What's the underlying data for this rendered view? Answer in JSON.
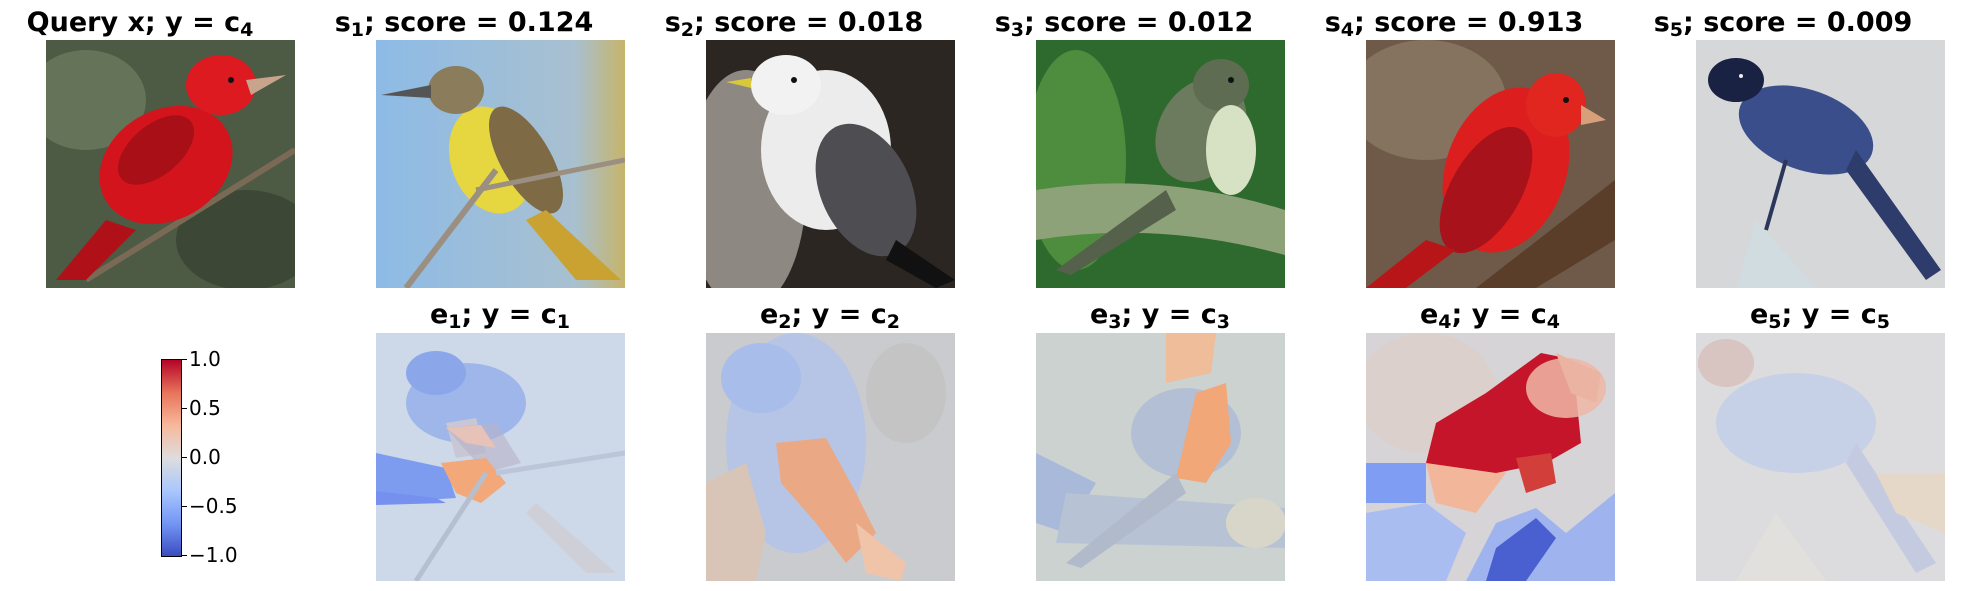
{
  "query": {
    "title_pre": "Query x; y = c",
    "title_sub": "4"
  },
  "similar": [
    {
      "sym": "s",
      "idx": "1",
      "score_text": "; score = 0.124"
    },
    {
      "sym": "s",
      "idx": "2",
      "score_text": "; score = 0.018"
    },
    {
      "sym": "s",
      "idx": "3",
      "score_text": "; score = 0.012"
    },
    {
      "sym": "s",
      "idx": "4",
      "score_text": "; score = 0.913"
    },
    {
      "sym": "s",
      "idx": "5",
      "score_text": "; score = 0.009"
    }
  ],
  "explanations": [
    {
      "sym": "e",
      "idx": "1",
      "mid": "; y = c",
      "cls": "1"
    },
    {
      "sym": "e",
      "idx": "2",
      "mid": "; y = c",
      "cls": "2"
    },
    {
      "sym": "e",
      "idx": "3",
      "mid": "; y = c",
      "cls": "3"
    },
    {
      "sym": "e",
      "idx": "4",
      "mid": "; y = c",
      "cls": "4"
    },
    {
      "sym": "e",
      "idx": "5",
      "mid": "; y = c",
      "cls": "5"
    }
  ],
  "colorbar": {
    "ticks": [
      "1.0",
      "0.5",
      "0.0",
      "−0.5",
      "−1.0"
    ],
    "colors": {
      "high": "#b40426",
      "mid": "#dddddd",
      "low": "#3b4cc0"
    }
  }
}
